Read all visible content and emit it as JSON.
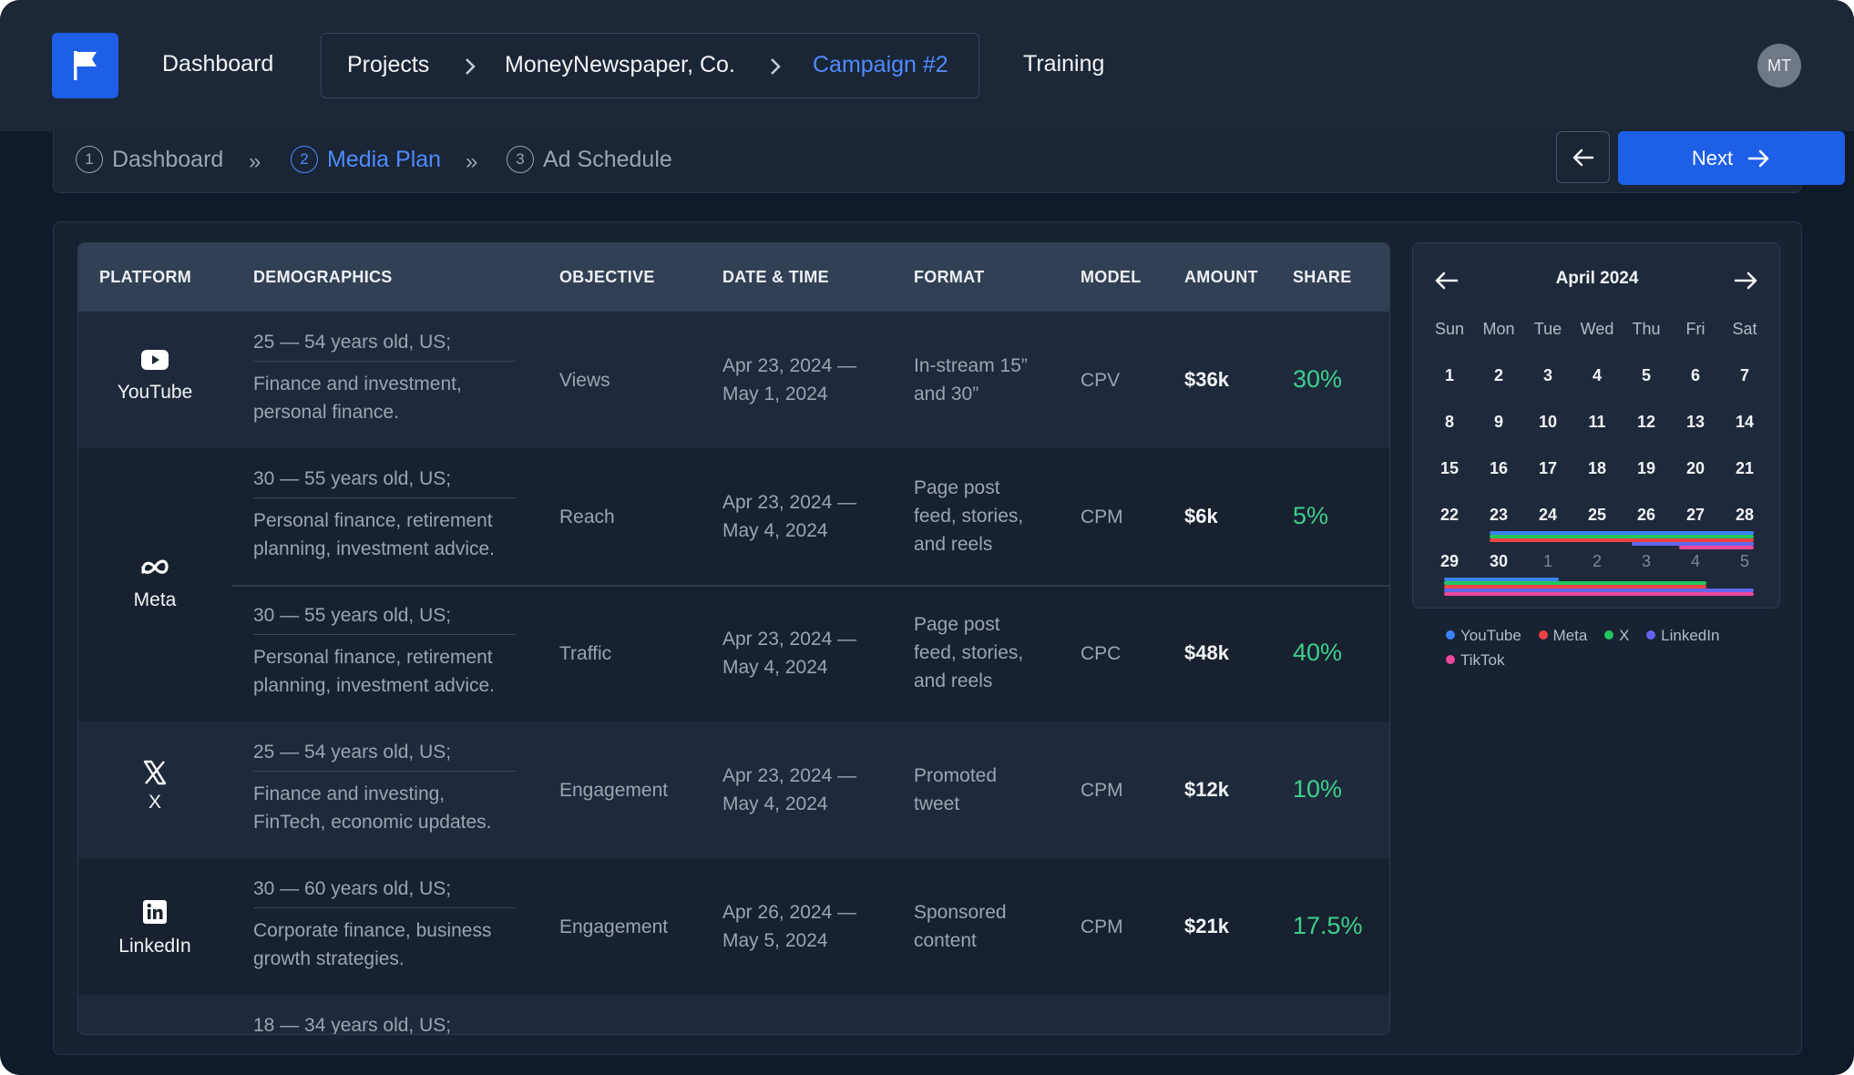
{
  "header": {
    "nav_dashboard": "Dashboard",
    "breadcrumbs": [
      "Projects",
      "MoneyNewspaper, Co.",
      "Campaign #2"
    ],
    "nav_training": "Training",
    "avatar_initials": "MT"
  },
  "stepper": {
    "steps": [
      {
        "num": "1",
        "label": "Dashboard"
      },
      {
        "num": "2",
        "label": "Media Plan"
      },
      {
        "num": "3",
        "label": "Ad Schedule"
      }
    ],
    "next_label": "Next"
  },
  "table": {
    "columns": [
      "PLATFORM",
      "DEMOGRAPHICS",
      "OBJECTIVE",
      "DATE & TIME",
      "FORMAT",
      "MODEL",
      "AMOUNT",
      "SHARE"
    ],
    "rows": [
      {
        "platform": "YouTube",
        "demo_age": "25 — 54 years old, US;",
        "demo_interest": [
          "Finance and investment,",
          "personal finance."
        ],
        "objective": "Views",
        "date": [
          "Apr 23, 2024 —",
          "May 1, 2024"
        ],
        "format": [
          "In-stream 15”",
          "and 30”"
        ],
        "model": "CPV",
        "amount": "$36k",
        "share": "30%"
      },
      {
        "platform": "Meta",
        "demo_age": "30 — 55 years old, US;",
        "demo_interest": [
          "Personal finance, retirement",
          "planning, investment advice."
        ],
        "objective": "Reach",
        "date": [
          "Apr 23, 2024 —",
          "May 4, 2024"
        ],
        "format": [
          "Page post",
          "feed, stories,",
          "and reels"
        ],
        "model": "CPM",
        "amount": "$6k",
        "share": "5%"
      },
      {
        "platform": "",
        "demo_age": "30 — 55 years old, US;",
        "demo_interest": [
          "Personal finance, retirement",
          "planning, investment advice."
        ],
        "objective": "Traffic",
        "date": [
          "Apr 23, 2024 —",
          "May 4, 2024"
        ],
        "format": [
          "Page post",
          "feed, stories,",
          "and reels"
        ],
        "model": "CPC",
        "amount": "$48k",
        "share": "40%"
      },
      {
        "platform": "X",
        "demo_age": "25 — 54 years old, US;",
        "demo_interest": [
          "Finance and investing,",
          "FinTech, economic updates."
        ],
        "objective": "Engagement",
        "date": [
          "Apr 23, 2024 —",
          "May 4, 2024"
        ],
        "format": [
          "Promoted",
          "tweet"
        ],
        "model": "CPM",
        "amount": "$12k",
        "share": "10%"
      },
      {
        "platform": "LinkedIn",
        "demo_age": "30 — 60 years old, US;",
        "demo_interest": [
          "Corporate finance, business",
          "growth strategies."
        ],
        "objective": "Engagement",
        "date": [
          "Apr 26, 2024 —",
          "May 5, 2024"
        ],
        "format": [
          "Sponsored",
          "content"
        ],
        "model": "CPM",
        "amount": "$21k",
        "share": "17.5%"
      },
      {
        "platform": "",
        "demo_age": "18 — 34 years old, US;",
        "demo_interest": [],
        "objective": "",
        "date": [],
        "format": [],
        "model": "",
        "amount": "",
        "share": ""
      }
    ]
  },
  "calendar": {
    "title": "April 2024",
    "weekdays": [
      "Sun",
      "Mon",
      "Tue",
      "Wed",
      "Thu",
      "Fri",
      "Sat"
    ],
    "weeks": [
      [
        "1",
        "2",
        "3",
        "4",
        "5",
        "6",
        "7"
      ],
      [
        "8",
        "9",
        "10",
        "11",
        "12",
        "13",
        "14"
      ],
      [
        "15",
        "16",
        "17",
        "18",
        "19",
        "20",
        "21"
      ],
      [
        "22",
        "23",
        "24",
        "25",
        "26",
        "27",
        "28"
      ],
      [
        "29",
        "30",
        "1",
        "2",
        "3",
        "4",
        "5"
      ]
    ],
    "legend": [
      {
        "name": "YouTube",
        "color": "#3b82f6"
      },
      {
        "name": "Meta",
        "color": "#ef4444"
      },
      {
        "name": "X",
        "color": "#22c55e"
      },
      {
        "name": "LinkedIn",
        "color": "#6366f1"
      },
      {
        "name": "TikTok",
        "color": "#ec4899"
      }
    ]
  }
}
